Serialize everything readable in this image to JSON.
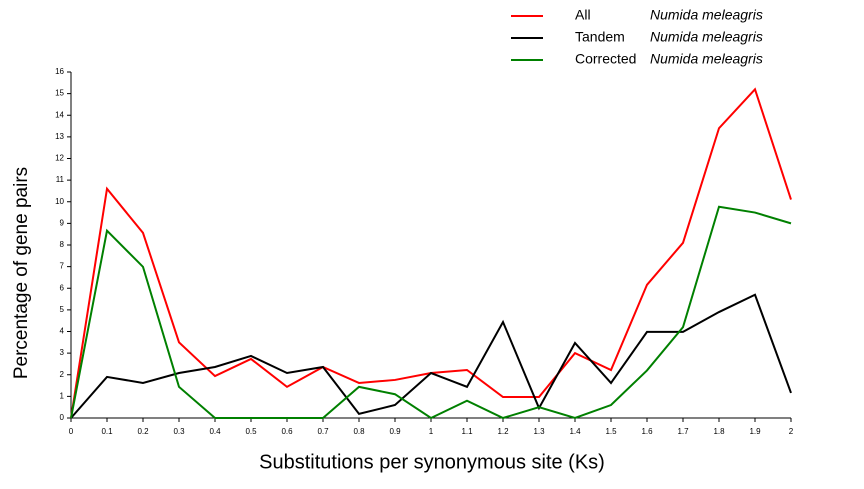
{
  "chart_data": {
    "type": "line",
    "x_label": "Substitutions per synonymous site (Ks)",
    "y_label": "Percentage of gene pairs",
    "x": [
      0,
      0.1,
      0.2,
      0.3,
      0.4,
      0.5,
      0.6,
      0.7,
      0.8,
      0.9,
      1,
      1.1,
      1.2,
      1.3,
      1.4,
      1.5,
      1.6,
      1.7,
      1.8,
      1.9,
      2
    ],
    "series": [
      {
        "name": "All",
        "species": "Numida meleagris",
        "color": "#ff0000",
        "values": [
          0,
          10.6,
          8.56,
          3.5,
          1.94,
          2.73,
          1.44,
          2.36,
          1.62,
          1.76,
          2.08,
          2.22,
          0.97,
          0.97,
          3.0,
          2.22,
          6.16,
          8.1,
          13.4,
          15.2,
          10.1
        ]
      },
      {
        "name": "Tandem",
        "species": "Numida meleagris",
        "color": "#000000",
        "values": [
          0,
          1.9,
          1.62,
          2.08,
          2.36,
          2.87,
          2.08,
          2.36,
          0.19,
          0.6,
          2.08,
          1.44,
          4.44,
          0.46,
          3.47,
          1.62,
          3.98,
          3.98,
          4.9,
          5.7,
          1.16
        ]
      },
      {
        "name": "Corrected",
        "species": "Numida meleagris",
        "color": "#008000",
        "values": [
          0,
          8.66,
          6.99,
          1.44,
          0,
          0,
          0,
          0,
          1.44,
          1.1,
          0,
          0.8,
          0,
          0.5,
          0,
          0.6,
          2.2,
          4.2,
          9.77,
          9.5,
          9.0
        ]
      }
    ],
    "xlim": [
      0,
      2
    ],
    "xticks": [
      0,
      0.1,
      0.2,
      0.3,
      0.4,
      0.5,
      0.6,
      0.7,
      0.8,
      0.9,
      1,
      1.1,
      1.2,
      1.3,
      1.4,
      1.5,
      1.6,
      1.7,
      1.8,
      1.9,
      2
    ],
    "ylim": [
      0,
      16
    ],
    "yticks": [
      0,
      1,
      2,
      3,
      4,
      5,
      6,
      7,
      8,
      9,
      10,
      11,
      12,
      13,
      14,
      15,
      16
    ],
    "grid": false,
    "legend_position": "top-right"
  }
}
